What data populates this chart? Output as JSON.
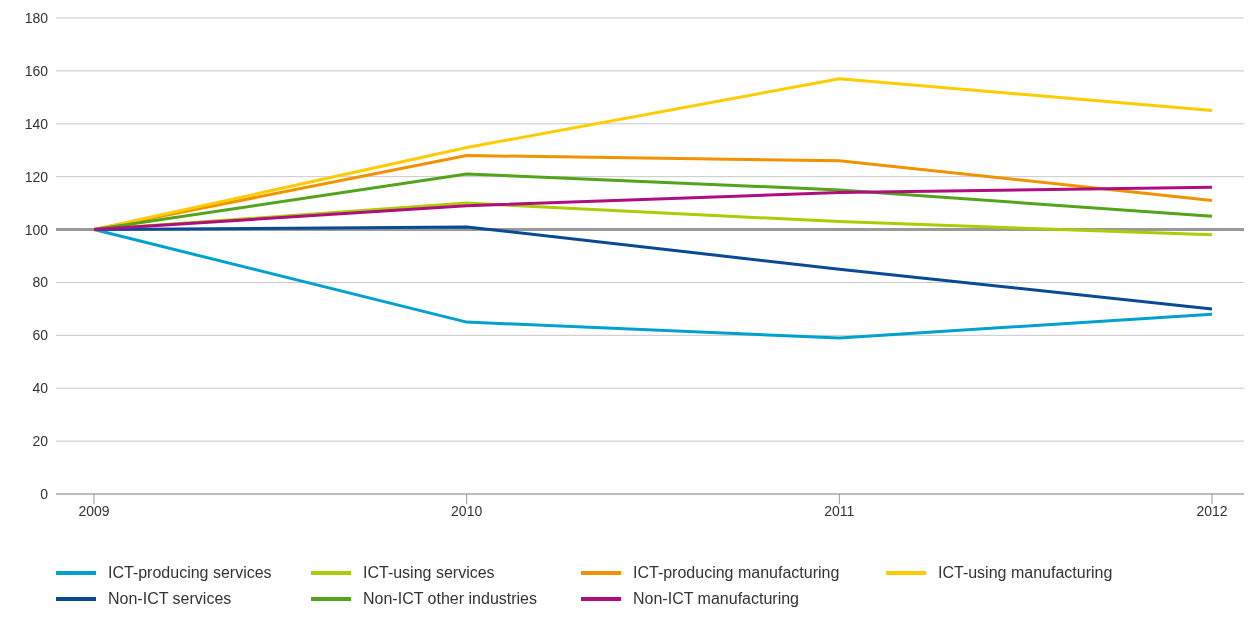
{
  "chart_data": {
    "type": "line",
    "categories": [
      "2009",
      "2010",
      "2011",
      "2012"
    ],
    "series": [
      {
        "name": "ICT-producing services",
        "color": "#00a1cd",
        "values": [
          100,
          65,
          59,
          68
        ]
      },
      {
        "name": "ICT-using services",
        "color": "#afcb05",
        "values": [
          100,
          110,
          103,
          98
        ]
      },
      {
        "name": "ICT-producing manufacturing",
        "color": "#f39200",
        "values": [
          100,
          128,
          126,
          111
        ]
      },
      {
        "name": "ICT-using manufacturing",
        "color": "#ffcc00",
        "values": [
          100,
          131,
          157,
          145
        ]
      },
      {
        "name": "Non-ICT services",
        "color": "#0a4a94",
        "values": [
          100,
          101,
          85,
          70
        ]
      },
      {
        "name": "Non-ICT other industries",
        "color": "#53a31d",
        "values": [
          100,
          121,
          115,
          105
        ]
      },
      {
        "name": "Non-ICT manufacturing",
        "color": "#af0e80",
        "values": [
          100,
          109,
          114,
          116
        ]
      }
    ],
    "ylim": [
      0,
      180
    ],
    "yticks": [
      0,
      20,
      40,
      60,
      80,
      100,
      120,
      140,
      160,
      180
    ],
    "grid": "y",
    "legend": "bottom",
    "marker": "none",
    "line_style": "solid",
    "ref_lines": [
      {
        "axis": "y",
        "value": 100,
        "color": "#999999"
      }
    ]
  }
}
